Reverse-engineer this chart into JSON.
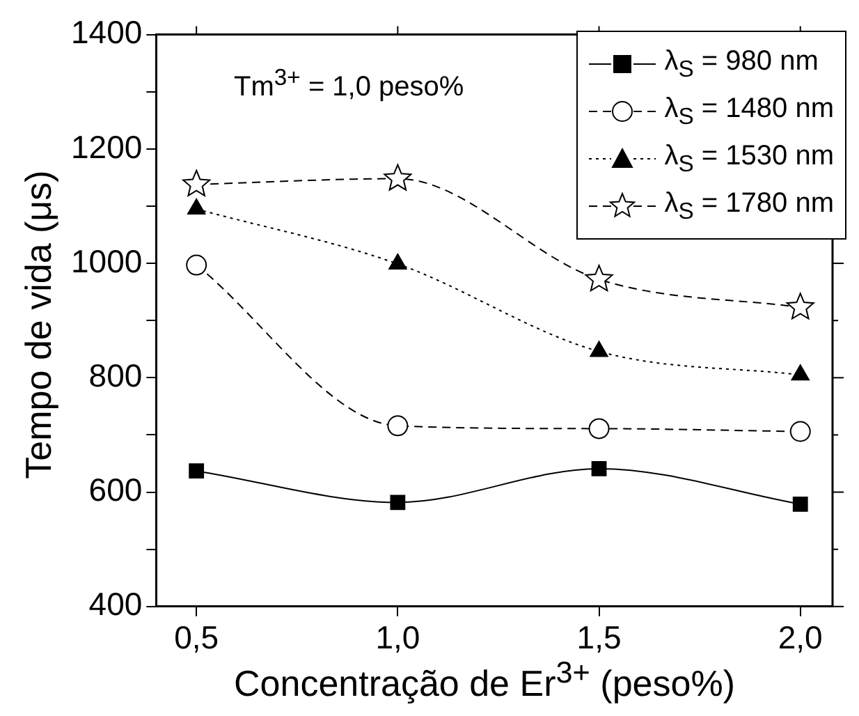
{
  "chart_data": {
    "type": "line",
    "xlabel": "Concentração de Er$^{3+}$ (peso%)",
    "ylabel": "Tempo de vida (μs)",
    "annotations": [
      "Tm$^{3+}$ = 1,0 peso%"
    ],
    "x": [
      0.5,
      1.0,
      1.5,
      2.0
    ],
    "xlim": [
      0.4,
      2.08
    ],
    "xticks": [
      {
        "value": 0.5,
        "label": "0,5"
      },
      {
        "value": 1.0,
        "label": "1,0"
      },
      {
        "value": 1.5,
        "label": "1,5"
      },
      {
        "value": 2.0,
        "label": "2,0"
      }
    ],
    "ylim": [
      400,
      1400
    ],
    "yticks": [
      400,
      {
        "value": 500,
        "label": null
      },
      600,
      {
        "value": 700,
        "label": null
      },
      800,
      {
        "value": 900,
        "label": null
      },
      1000,
      {
        "value": 1100,
        "label": null
      },
      1200,
      {
        "value": 1300,
        "label": null
      },
      1400
    ],
    "grid": false,
    "legend": "top right",
    "series": [
      {
        "name": "λ$_{S}$ = 980 nm",
        "color": "#000000",
        "marker": "square",
        "line_style": "solid",
        "values": [
          637,
          582,
          641,
          579
        ]
      },
      {
        "name": "λ$_{S}$ = 1480 nm",
        "color": "#000000",
        "marker": "circle",
        "line_style": "dashed",
        "values": [
          997,
          716,
          711,
          706
        ]
      },
      {
        "name": "λ$_{S}$ = 1530 nm",
        "color": "#000000",
        "marker": "triangle",
        "line_style": "dotted",
        "values": [
          1095,
          999,
          846,
          805
        ]
      },
      {
        "name": "λ$_{S}$ = 1780 nm",
        "color": "#000000",
        "marker": "star",
        "line_style": "dashed",
        "values": [
          1138,
          1148,
          972,
          923
        ]
      }
    ]
  }
}
